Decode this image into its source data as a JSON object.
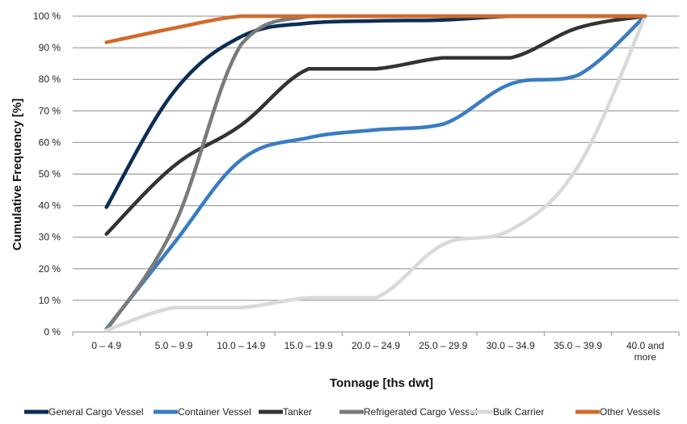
{
  "chart_data": {
    "type": "line",
    "xlabel": "Tonnage [ths dwt]",
    "ylabel": "Cumulative Frequency [%]",
    "ylim": [
      0,
      100
    ],
    "grid": true,
    "legend_position": "bottom",
    "y_ticks": [
      "0 %",
      "10 %",
      "20 %",
      "30 %",
      "40 %",
      "50 %",
      "60 %",
      "70 %",
      "80 %",
      "90 %",
      "100 %"
    ],
    "categories": [
      [
        "0 – 4.9"
      ],
      [
        "5.0 – 9.9"
      ],
      [
        "10.0 – 14.9"
      ],
      [
        "15.0 – 19.9"
      ],
      [
        "20.0 – 24.9"
      ],
      [
        "25.0 – 29.9"
      ],
      [
        "30.0 – 34.9"
      ],
      [
        "35.0 – 39.9"
      ],
      [
        "40.0 and",
        "more"
      ]
    ],
    "series": [
      {
        "name": "General Cargo Vessel",
        "color": "#0b2d55",
        "values": [
          39.5,
          76,
          93.5,
          97.8,
          98.5,
          98.8,
          100,
          100,
          100
        ]
      },
      {
        "name": "Container Vessel",
        "color": "#3a7cc2",
        "values": [
          1,
          28,
          54.5,
          61.5,
          64,
          65.8,
          78.5,
          81.3,
          100
        ]
      },
      {
        "name": "Tanker",
        "color": "#333333",
        "values": [
          31,
          52.5,
          65.5,
          83.3,
          83.3,
          86.8,
          86.8,
          96.3,
          100
        ]
      },
      {
        "name": "Refrigerated Cargo Vessel",
        "color": "#7a7a7a",
        "values": [
          0.5,
          33.3,
          91,
          100,
          100,
          100,
          100,
          100,
          100
        ]
      },
      {
        "name": "Bulk Carrier",
        "color": "#d9d9d9",
        "values": [
          0.5,
          7.7,
          7.7,
          10.8,
          10.8,
          27.7,
          32.3,
          52.3,
          100
        ]
      },
      {
        "name": "Other Vessels",
        "color": "#d16b2b",
        "values": [
          91.7,
          96.2,
          100,
          100,
          100,
          100,
          100,
          100,
          100
        ]
      }
    ]
  }
}
